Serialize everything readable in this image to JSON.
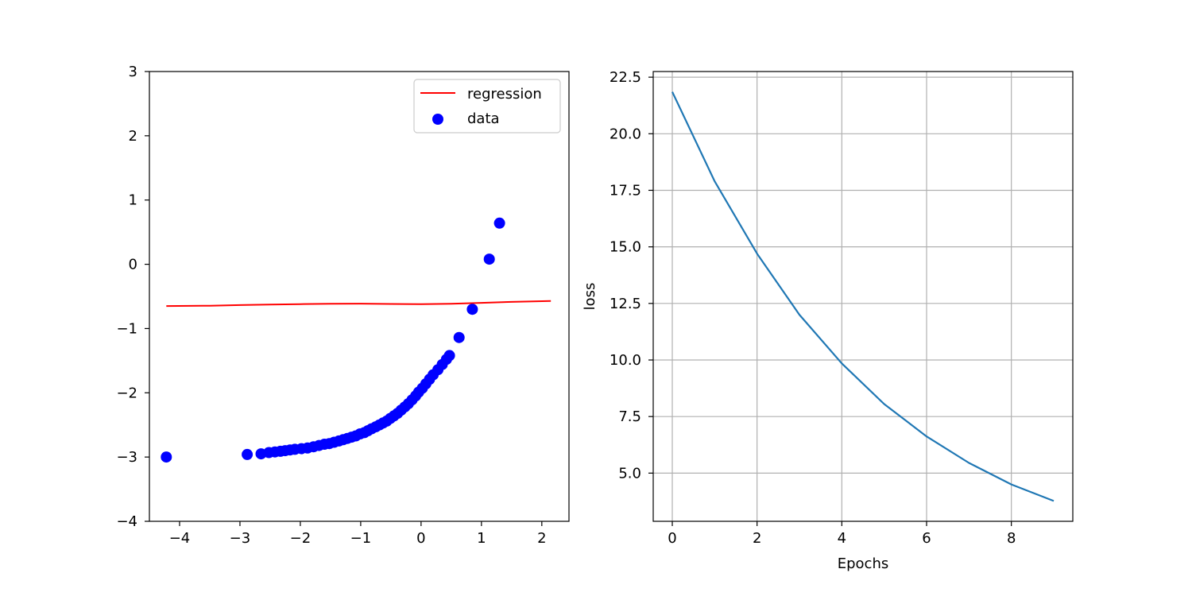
{
  "chart_data": [
    {
      "type": "scatter",
      "title": "",
      "xlabel": "",
      "ylabel": "",
      "xlim": [
        -4.5,
        2.45
      ],
      "ylim": [
        -4,
        3
      ],
      "xticks": [
        -4,
        -3,
        -2,
        -1,
        0,
        1,
        2
      ],
      "yticks": [
        -4,
        -3,
        -2,
        -1,
        0,
        1,
        2,
        3
      ],
      "xtick_labels": [
        "−4",
        "−3",
        "−2",
        "−1",
        "0",
        "1",
        "2"
      ],
      "ytick_labels": [
        "−4",
        "−3",
        "−2",
        "−1",
        "0",
        "1",
        "2",
        "3"
      ],
      "grid": false,
      "legend": "top-right",
      "series": [
        {
          "name": "regression",
          "kind": "line",
          "color": "#ff0000",
          "x": [
            -4.22,
            -3.5,
            -3.0,
            -2.5,
            -2.0,
            -1.5,
            -1.0,
            -0.5,
            0.0,
            0.5,
            1.0,
            1.5,
            2.15
          ],
          "y": [
            -0.65,
            -0.645,
            -0.635,
            -0.627,
            -0.62,
            -0.615,
            -0.613,
            -0.617,
            -0.62,
            -0.615,
            -0.6,
            -0.585,
            -0.57
          ]
        },
        {
          "name": "data",
          "kind": "scatter",
          "color": "#0000ff",
          "x": [
            -4.22,
            -2.88,
            -2.65,
            -2.52,
            -2.42,
            -2.33,
            -2.25,
            -2.17,
            -2.09,
            -1.98,
            -1.88,
            -1.78,
            -1.69,
            -1.6,
            -1.52,
            -1.44,
            -1.36,
            -1.29,
            -1.22,
            -1.15,
            -1.08,
            -1.01,
            -0.94,
            -0.88,
            -0.82,
            -0.75,
            -0.69,
            -0.63,
            -0.57,
            -0.51,
            -0.45,
            -0.39,
            -0.33,
            -0.27,
            -0.21,
            -0.15,
            -0.09,
            -0.04,
            0.02,
            0.08,
            0.14,
            0.2,
            0.28,
            0.35,
            0.42,
            0.47,
            0.63,
            0.85,
            1.13,
            1.3
          ],
          "y": [
            -3.0,
            -2.96,
            -2.95,
            -2.93,
            -2.92,
            -2.91,
            -2.9,
            -2.89,
            -2.88,
            -2.87,
            -2.86,
            -2.84,
            -2.82,
            -2.8,
            -2.79,
            -2.77,
            -2.75,
            -2.73,
            -2.71,
            -2.69,
            -2.67,
            -2.64,
            -2.62,
            -2.59,
            -2.56,
            -2.53,
            -2.5,
            -2.47,
            -2.44,
            -2.4,
            -2.36,
            -2.32,
            -2.27,
            -2.22,
            -2.17,
            -2.11,
            -2.05,
            -1.99,
            -1.93,
            -1.86,
            -1.79,
            -1.72,
            -1.64,
            -1.56,
            -1.48,
            -1.42,
            -1.14,
            -0.7,
            0.08,
            0.64
          ]
        }
      ]
    },
    {
      "type": "line",
      "title": "",
      "xlabel": "Epochs",
      "ylabel": "loss",
      "xlim": [
        -0.45,
        9.45
      ],
      "ylim": [
        2.87,
        22.75
      ],
      "xticks": [
        0,
        2,
        4,
        6,
        8
      ],
      "yticks": [
        5,
        7.5,
        10,
        12.5,
        15,
        17.5,
        20,
        22.5
      ],
      "xtick_labels": [
        "0",
        "2",
        "4",
        "6",
        "8"
      ],
      "ytick_labels": [
        "5.0",
        "7.5",
        "10.0",
        "12.5",
        "15.0",
        "17.5",
        "20.0",
        "22.5"
      ],
      "grid": true,
      "legend": "none",
      "series": [
        {
          "name": "",
          "kind": "line",
          "color": "#1f77b4",
          "x": [
            0,
            1,
            2,
            3,
            4,
            5,
            6,
            7,
            8,
            9
          ],
          "y": [
            21.85,
            17.9,
            14.7,
            12.0,
            9.85,
            8.05,
            6.62,
            5.45,
            4.5,
            3.77
          ]
        }
      ]
    }
  ]
}
